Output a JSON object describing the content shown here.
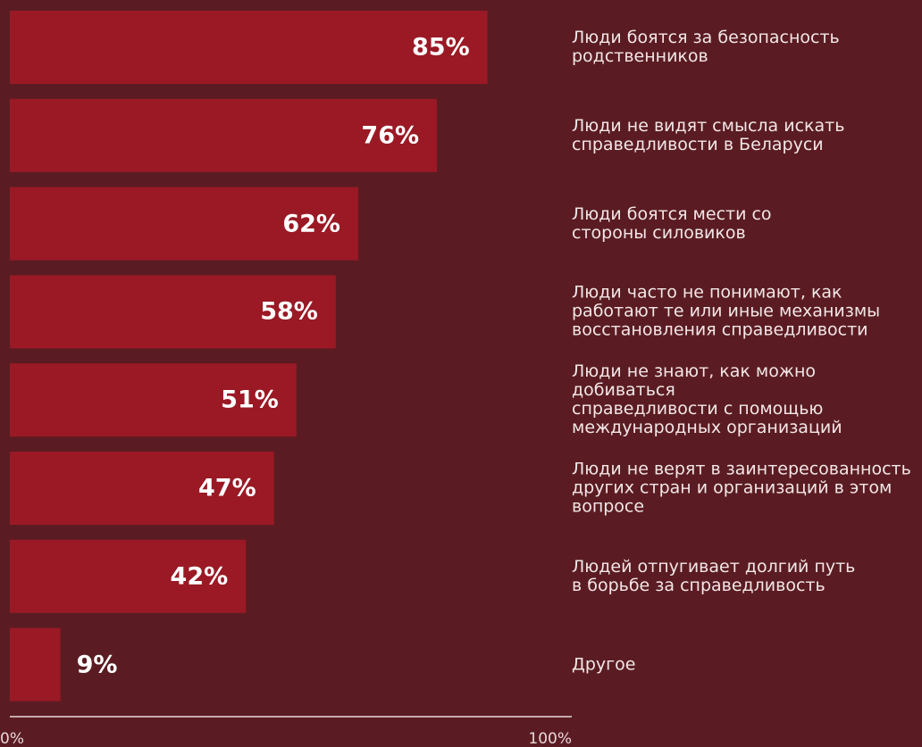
{
  "chart_data": {
    "type": "bar",
    "orientation": "horizontal",
    "categories": [
      "Люди боятся за безопасность\nродственников",
      "Люди не видят смысла искать\nсправедливости в Беларуси",
      "Люди боятся мести со\nстороны силовиков",
      "Люди часто не понимают, как\nработают те или иные механизмы\nвосстановления справедливости",
      "Люди не знают, как можно добиваться\nсправедливости с помощью\nмеждународных организаций",
      "Люди не верят в заинтересованность\nдругих стран и организаций в этом\nвопросе",
      "Людей отпугивает долгий путь\nв борьбе за справедливость",
      "Другое"
    ],
    "values": [
      85,
      76,
      62,
      58,
      51,
      47,
      42,
      9
    ],
    "value_labels": [
      "85%",
      "76%",
      "62%",
      "58%",
      "51%",
      "47%",
      "42%",
      "9%"
    ],
    "color": "#9a1925",
    "xlim": [
      0,
      100
    ],
    "xticks": [
      {
        "value": 0,
        "label": "0%"
      },
      {
        "value": 100,
        "label": "100%"
      }
    ]
  }
}
